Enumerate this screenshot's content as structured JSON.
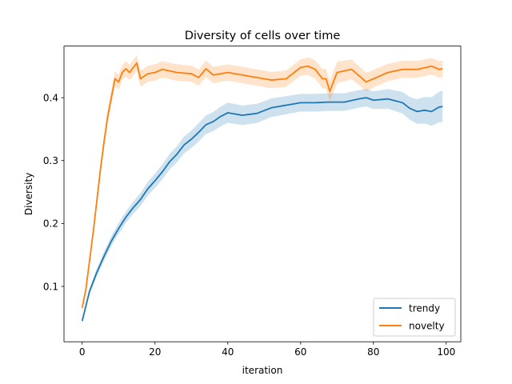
{
  "chart_data": {
    "type": "line",
    "title": "Diversity of cells over time",
    "xlabel": "iteration",
    "ylabel": "Diversity",
    "xlim": [
      -5,
      104
    ],
    "ylim": [
      0.012,
      0.482
    ],
    "xticks": [
      0,
      20,
      40,
      60,
      80,
      100
    ],
    "yticks": [
      0.1,
      0.2,
      0.3,
      0.4
    ],
    "xtick_labels": [
      "0",
      "20",
      "40",
      "60",
      "80",
      "100"
    ],
    "ytick_labels": [
      "0.1",
      "0.2",
      "0.3",
      "0.4"
    ],
    "grid": false,
    "legend": "lower-right",
    "series": [
      {
        "name": "trendy",
        "color": "#1f77b4",
        "band_color": "#aec7e8",
        "mean_keypoints": [
          [
            0,
            0.045
          ],
          [
            2,
            0.092
          ],
          [
            4,
            0.122
          ],
          [
            6,
            0.148
          ],
          [
            8,
            0.172
          ],
          [
            10,
            0.192
          ],
          [
            12,
            0.21
          ],
          [
            14,
            0.225
          ],
          [
            16,
            0.238
          ],
          [
            18,
            0.255
          ],
          [
            20,
            0.268
          ],
          [
            22,
            0.282
          ],
          [
            24,
            0.298
          ],
          [
            26,
            0.31
          ],
          [
            28,
            0.325
          ],
          [
            30,
            0.334
          ],
          [
            32,
            0.345
          ],
          [
            34,
            0.357
          ],
          [
            36,
            0.362
          ],
          [
            38,
            0.37
          ],
          [
            40,
            0.376
          ],
          [
            44,
            0.372
          ],
          [
            48,
            0.375
          ],
          [
            52,
            0.384
          ],
          [
            56,
            0.388
          ],
          [
            60,
            0.392
          ],
          [
            64,
            0.392
          ],
          [
            68,
            0.393
          ],
          [
            72,
            0.393
          ],
          [
            76,
            0.398
          ],
          [
            78,
            0.4
          ],
          [
            80,
            0.396
          ],
          [
            84,
            0.398
          ],
          [
            88,
            0.392
          ],
          [
            90,
            0.383
          ],
          [
            92,
            0.378
          ],
          [
            94,
            0.38
          ],
          [
            96,
            0.378
          ],
          [
            98,
            0.385
          ],
          [
            99,
            0.386
          ]
        ],
        "band_halfwidth_keypoints": [
          [
            0,
            0.003
          ],
          [
            5,
            0.007
          ],
          [
            15,
            0.01
          ],
          [
            30,
            0.014
          ],
          [
            40,
            0.016
          ],
          [
            60,
            0.014
          ],
          [
            80,
            0.014
          ],
          [
            90,
            0.018
          ],
          [
            99,
            0.025
          ]
        ]
      },
      {
        "name": "novelty",
        "color": "#ff7f0e",
        "band_color": "#ffbb78",
        "mean_keypoints": [
          [
            0,
            0.066
          ],
          [
            1,
            0.095
          ],
          [
            2,
            0.14
          ],
          [
            3,
            0.185
          ],
          [
            4,
            0.235
          ],
          [
            5,
            0.285
          ],
          [
            6,
            0.33
          ],
          [
            7,
            0.37
          ],
          [
            8,
            0.4
          ],
          [
            9,
            0.43
          ],
          [
            10,
            0.425
          ],
          [
            11,
            0.44
          ],
          [
            12,
            0.446
          ],
          [
            13,
            0.44
          ],
          [
            15,
            0.455
          ],
          [
            16,
            0.43
          ],
          [
            18,
            0.438
          ],
          [
            20,
            0.44
          ],
          [
            22,
            0.445
          ],
          [
            26,
            0.44
          ],
          [
            30,
            0.438
          ],
          [
            32,
            0.432
          ],
          [
            34,
            0.446
          ],
          [
            36,
            0.436
          ],
          [
            40,
            0.44
          ],
          [
            44,
            0.436
          ],
          [
            48,
            0.432
          ],
          [
            52,
            0.428
          ],
          [
            56,
            0.43
          ],
          [
            60,
            0.448
          ],
          [
            62,
            0.45
          ],
          [
            64,
            0.445
          ],
          [
            66,
            0.43
          ],
          [
            67,
            0.43
          ],
          [
            68,
            0.41
          ],
          [
            70,
            0.44
          ],
          [
            74,
            0.445
          ],
          [
            78,
            0.425
          ],
          [
            80,
            0.43
          ],
          [
            84,
            0.44
          ],
          [
            88,
            0.445
          ],
          [
            92,
            0.445
          ],
          [
            96,
            0.45
          ],
          [
            98,
            0.445
          ],
          [
            99,
            0.446
          ]
        ],
        "band_halfwidth_keypoints": [
          [
            0,
            0.004
          ],
          [
            5,
            0.01
          ],
          [
            10,
            0.012
          ],
          [
            20,
            0.013
          ],
          [
            40,
            0.013
          ],
          [
            60,
            0.013
          ],
          [
            70,
            0.017
          ],
          [
            80,
            0.014
          ],
          [
            99,
            0.013
          ]
        ]
      }
    ]
  }
}
